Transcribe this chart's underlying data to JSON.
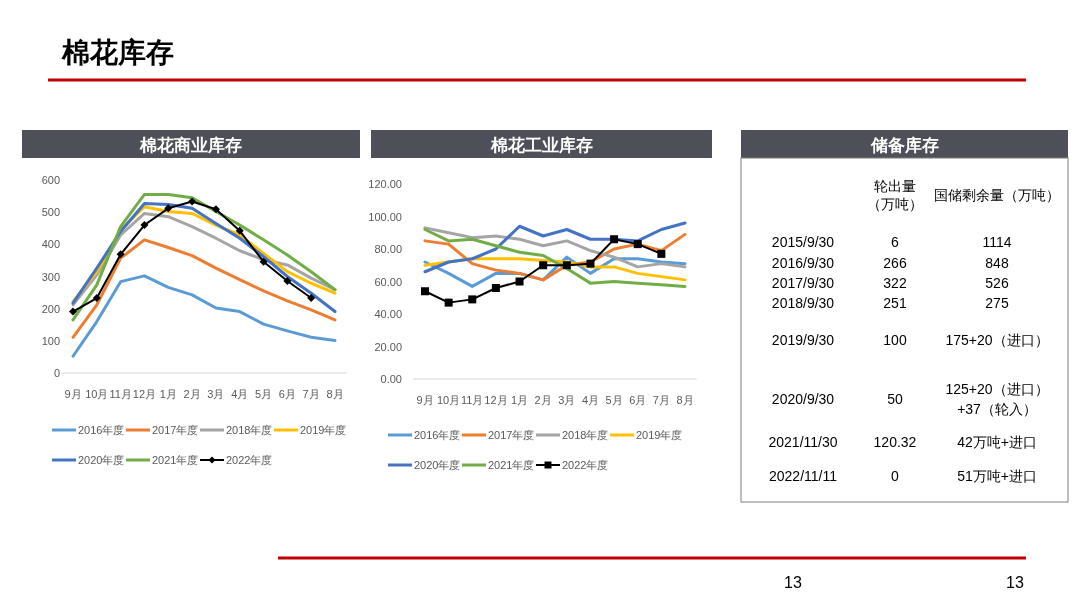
{
  "chart_data": [
    {
      "type": "other",
      "title": "棉花库存",
      "annotations": [
        "13",
        "13"
      ]
    },
    {
      "type": "line",
      "title": "棉花商业库存",
      "categories": [
        "9月",
        "10月",
        "11月",
        "12月",
        "1月",
        "2月",
        "3月",
        "4月",
        "5月",
        "6月",
        "7月",
        "8月"
      ],
      "ylim": [
        0,
        600
      ],
      "yticks": [
        0,
        100,
        200,
        300,
        400,
        500,
        600
      ],
      "grid": false,
      "legend": "bottom",
      "series": [
        {
          "name": "2016年度",
          "color": "#5b9bd5",
          "values": [
            52,
            160,
            284,
            302,
            266,
            243,
            202,
            191,
            152,
            131,
            111,
            101
          ]
        },
        {
          "name": "2017年度",
          "color": "#ed7d31",
          "values": [
            111,
            212,
            357,
            414,
            390,
            365,
            326,
            290,
            255,
            224,
            196,
            165
          ]
        },
        {
          "name": "2018年度",
          "color": "#a5a5a5",
          "values": [
            212,
            305,
            429,
            496,
            486,
            455,
            419,
            380,
            352,
            336,
            295,
            259
          ]
        },
        {
          "name": "2019年度",
          "color": "#ffc000",
          "values": [
            222,
            315,
            445,
            517,
            502,
            496,
            460,
            429,
            372,
            315,
            279,
            248
          ]
        },
        {
          "name": "2020年度",
          "color": "#4472c4",
          "values": [
            217,
            326,
            440,
            527,
            524,
            512,
            465,
            419,
            362,
            300,
            248,
            191
          ]
        },
        {
          "name": "2021年度",
          "color": "#70ad47",
          "values": [
            165,
            274,
            455,
            555,
            555,
            545,
            502,
            460,
            414,
            367,
            315,
            259
          ]
        },
        {
          "name": "2022年度",
          "color": "#000000",
          "marker": "diamond",
          "values": [
            191,
            233,
            369,
            460,
            512,
            533,
            509,
            442,
            346,
            286,
            233,
            null
          ]
        }
      ]
    },
    {
      "type": "line",
      "title": "棉花工业库存",
      "categories": [
        "9月",
        "10月",
        "11月",
        "12月",
        "1月",
        "2月",
        "3月",
        "4月",
        "5月",
        "6月",
        "7月",
        "8月"
      ],
      "ylim": [
        0,
        120
      ],
      "yticks": [
        {
          "value": 0,
          "label": "0.00"
        },
        {
          "value": 20,
          "label": "20.00"
        },
        {
          "value": 40,
          "label": "40.00"
        },
        {
          "value": 60,
          "label": "60.00"
        },
        {
          "value": 80,
          "label": "80.00"
        },
        {
          "value": 100,
          "label": "100.00"
        },
        {
          "value": 120,
          "label": "120.00"
        }
      ],
      "grid": false,
      "legend": "bottom",
      "series": [
        {
          "name": "2016年度",
          "color": "#5b9bd5",
          "values": [
            72,
            65,
            57,
            65,
            65,
            61,
            75,
            65,
            74,
            74,
            72,
            71
          ]
        },
        {
          "name": "2017年度",
          "color": "#ed7d31",
          "values": [
            85,
            83,
            71,
            67,
            65,
            61,
            70,
            72,
            80,
            83,
            79,
            89
          ]
        },
        {
          "name": "2018年度",
          "color": "#a5a5a5",
          "values": [
            93,
            90,
            87,
            88,
            86,
            82,
            85,
            79,
            75,
            69,
            71,
            69
          ]
        },
        {
          "name": "2019年度",
          "color": "#ffc000",
          "values": [
            70,
            72,
            74,
            74,
            74,
            73,
            72,
            69,
            69,
            65,
            63,
            61
          ]
        },
        {
          "name": "2020年度",
          "color": "#4472c4",
          "values": [
            66,
            72,
            74,
            80,
            94,
            88,
            92,
            86,
            86,
            85,
            92,
            96
          ]
        },
        {
          "name": "2021年度",
          "color": "#70ad47",
          "values": [
            92,
            85,
            86,
            82,
            78,
            76,
            68,
            59,
            60,
            59,
            58,
            57
          ]
        },
        {
          "name": "2022年度",
          "color": "#000000",
          "marker": "square",
          "values": [
            54,
            47,
            49,
            56,
            60,
            70,
            70,
            71,
            86,
            83,
            77,
            null
          ]
        }
      ]
    },
    {
      "type": "other",
      "title": "储备库存",
      "categories": [
        null,
        "轮出量（万吨）",
        "国储剩余量（万吨）"
      ],
      "y_categories": [
        "2015/9/30",
        "2016/9/30",
        "2017/9/30",
        "2018/9/30",
        "2019/9/30",
        "2020/9/30",
        "2021/11/30",
        "2022/11/11"
      ],
      "cell_labels": [
        [
          "6",
          "1114"
        ],
        [
          "266",
          "848"
        ],
        [
          "322",
          "526"
        ],
        [
          "251",
          "275"
        ],
        [
          "100",
          "175+20（进口）"
        ],
        [
          "50",
          "125+20（进口）\n+37（轮入）"
        ],
        [
          "120.32",
          "42万吨+进口"
        ],
        [
          "0",
          "51万吨+进口"
        ]
      ]
    }
  ]
}
